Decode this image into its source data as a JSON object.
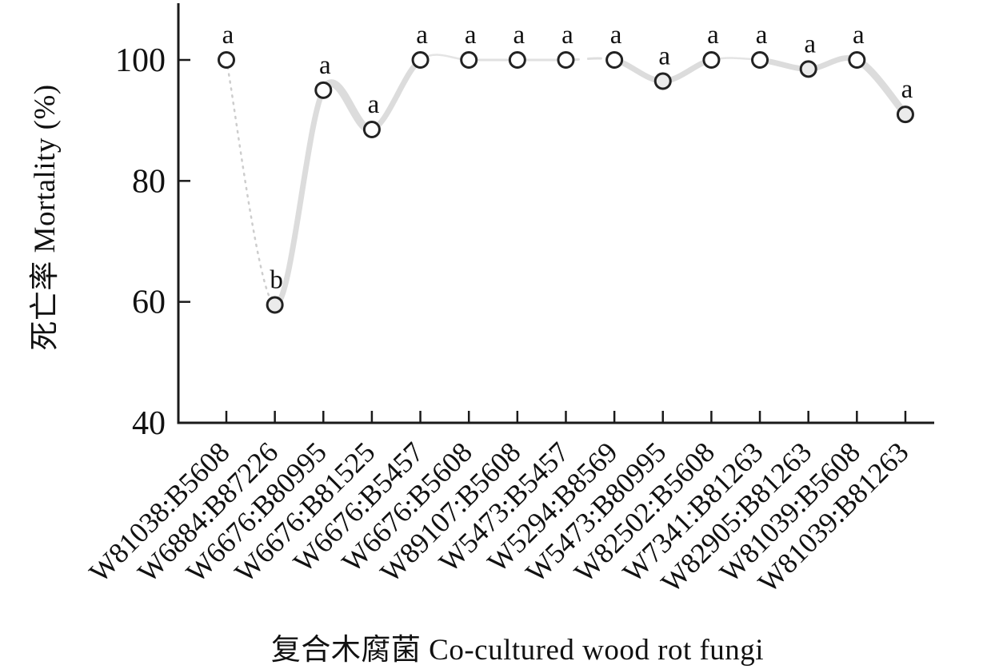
{
  "figure": {
    "x_axis_title": "复合木腐菌 Co-cultured wood rot fungi",
    "y_axis_title": "死亡率 Mortality (%)"
  },
  "chart_data": {
    "type": "line",
    "title": "",
    "xlabel": "复合木腐菌 Co-cultured wood rot fungi",
    "ylabel": "死亡率 Mortality (%)",
    "ylim": [
      40,
      108
    ],
    "yticks": [
      40,
      60,
      80,
      100
    ],
    "grid": false,
    "legend": "none",
    "marker": "open-circle",
    "axis_color": "#1a1a1a",
    "band_color": "#dcdcdc",
    "marker_stroke": "#222222",
    "categories": [
      "W81038:B5608",
      "W6884:B87226",
      "W6676:B80995",
      "W6676:B81525",
      "W6676:B5457",
      "W6676:B5608",
      "W89107:B5608",
      "W5473:B5457",
      "W5294:B8569",
      "W5473:B80995",
      "W82502:B5608",
      "W7341:B81263",
      "W82905:B81263",
      "W81039:B5608",
      "W81039:B81263"
    ],
    "values": [
      100,
      59.5,
      95,
      88.5,
      100,
      100,
      100,
      100,
      100,
      96.5,
      100,
      100,
      98.5,
      100,
      91
    ],
    "sig_letters": [
      "a",
      "b",
      "a",
      "a",
      "a",
      "a",
      "a",
      "a",
      "a",
      "a",
      "a",
      "a",
      "a",
      "a",
      "a"
    ]
  }
}
